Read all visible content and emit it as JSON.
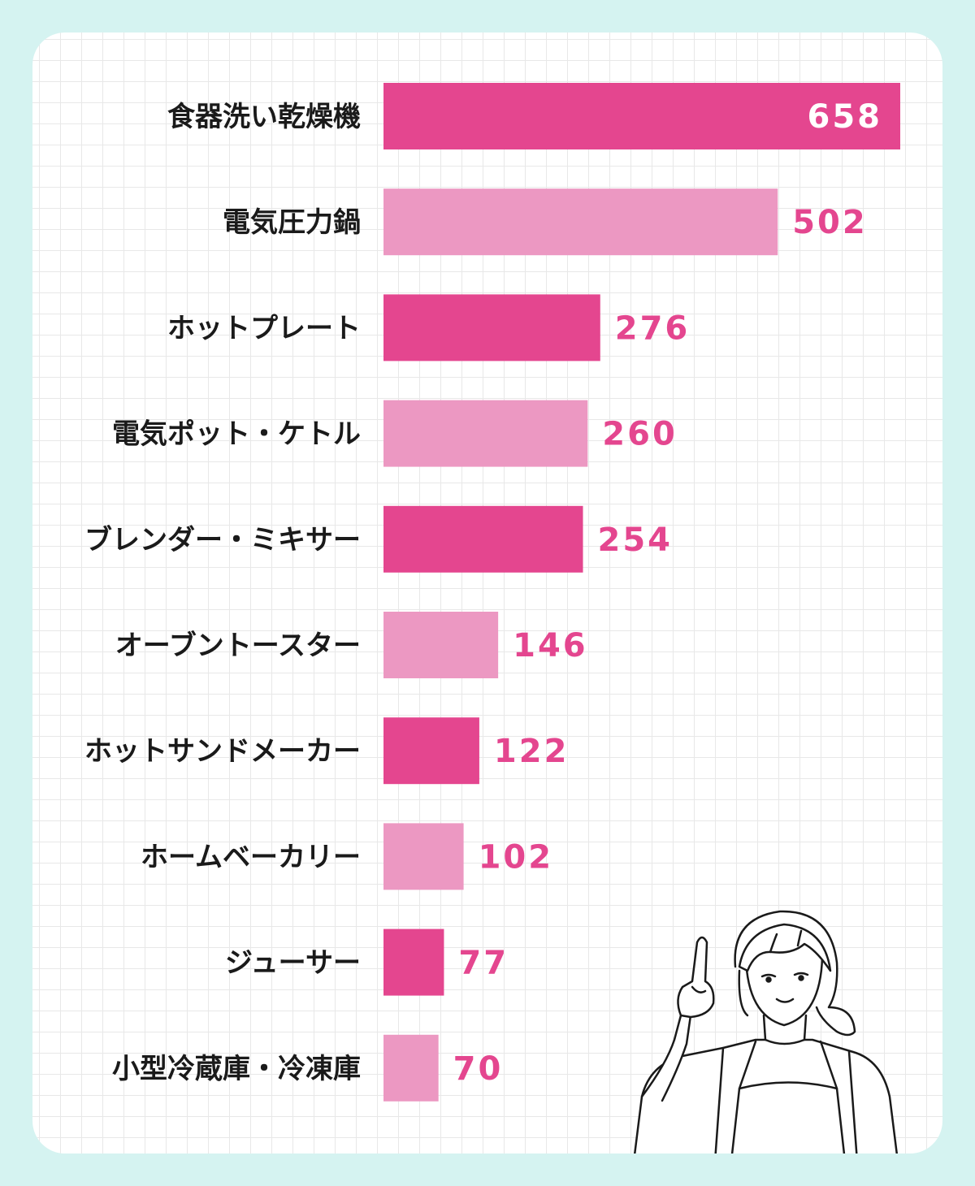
{
  "chart_data": {
    "type": "bar",
    "orientation": "horizontal",
    "categories": [
      "食器洗い乾燥機",
      "電気圧力鍋",
      "ホットプレート",
      "電気ポット・ケトル",
      "ブレンダー・ミキサー",
      "オーブントースター",
      "ホットサンドメーカー",
      "ホームベーカリー",
      "ジューサー",
      "小型冷蔵庫・冷凍庫"
    ],
    "values": [
      658,
      502,
      276,
      260,
      254,
      146,
      122,
      102,
      77,
      70
    ],
    "xlim": [
      0,
      658
    ],
    "grid": true,
    "colors": {
      "dark_bar": "#e4468f",
      "light_bar": "#ec98c2",
      "value_text": "#e4468f",
      "value_text_inside": "#ffffff",
      "category_text": "#1a1a1a",
      "card_background": "#ffffff",
      "page_background": "#d5f3f1",
      "grid_line": "#e8e8e8"
    }
  },
  "illustration": {
    "icon": "woman-pointing-up-illustration"
  }
}
